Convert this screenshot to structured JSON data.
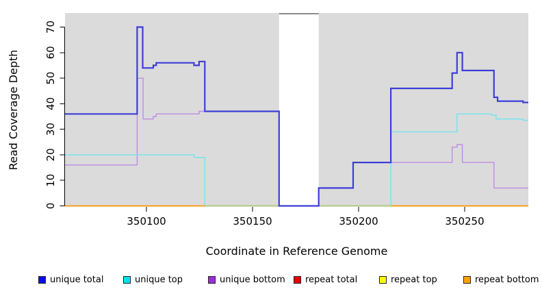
{
  "chart_data": {
    "type": "line",
    "title": "",
    "xlabel": "Coordinate in Reference Genome",
    "ylabel": "Read Coverage Depth",
    "xlim": [
      350061.6,
      350280.0
    ],
    "ylim": [
      0,
      75.5
    ],
    "x_ticks": [
      350100,
      350150,
      350200,
      350250
    ],
    "y_ticks": [
      0,
      10,
      20,
      30,
      40,
      50,
      60,
      70
    ],
    "grid": false,
    "plot_bg_color": "#dbdbdb",
    "gap_region": {
      "x_start": 350162.5,
      "x_end": 350181.2,
      "fill": "#ffffff",
      "top_line_color": "#8a8a8a"
    },
    "zero_overlap": {
      "x_start": 350127.5,
      "x_end": 350215.2,
      "color": "#97d7a1"
    },
    "series": [
      {
        "name": "repeat total",
        "color": "#e60000",
        "width": 1.5,
        "steps": [
          [
            350061.6,
            0
          ]
        ]
      },
      {
        "name": "repeat top",
        "color": "#ffff00",
        "width": 1.5,
        "steps": [
          [
            350061.6,
            0
          ]
        ]
      },
      {
        "name": "unique bottom",
        "color": "#bf8ce3",
        "width": 1.4,
        "steps": [
          [
            350061.6,
            16
          ],
          [
            350095.6,
            50
          ],
          [
            350098.4,
            34
          ],
          [
            350103.2,
            35
          ],
          [
            350104.6,
            36
          ],
          [
            350124.8,
            37
          ],
          [
            350162.5,
            0
          ],
          [
            350181.2,
            7
          ],
          [
            350197.4,
            17
          ],
          [
            350244.1,
            23
          ],
          [
            350246.4,
            24
          ],
          [
            350248.9,
            17
          ],
          [
            350263.8,
            7
          ]
        ]
      },
      {
        "name": "unique top",
        "color": "#72e5ee",
        "width": 1.4,
        "steps": [
          [
            350061.6,
            20
          ],
          [
            350122.4,
            19
          ],
          [
            350127.5,
            0
          ],
          [
            350215.2,
            29
          ],
          [
            350246.4,
            36
          ],
          [
            350262.5,
            35.5
          ],
          [
            350264.8,
            34
          ],
          [
            350277.5,
            33.5
          ]
        ]
      },
      {
        "name": "repeat bottom",
        "color": "#ff9f1a",
        "width": 2,
        "steps": [
          [
            350061.6,
            0
          ]
        ]
      },
      {
        "name": "unique total",
        "color": "#3d3dd8",
        "width": 2.2,
        "steps": [
          [
            350061.6,
            36
          ],
          [
            350095.6,
            70
          ],
          [
            350098.2,
            54
          ],
          [
            350103.2,
            55
          ],
          [
            350104.6,
            56
          ],
          [
            350122.4,
            55
          ],
          [
            350124.8,
            56.5
          ],
          [
            350127.5,
            37
          ],
          [
            350162.5,
            0
          ],
          [
            350181.2,
            7
          ],
          [
            350197.4,
            17
          ],
          [
            350215.2,
            46
          ],
          [
            350244.1,
            52
          ],
          [
            350246.4,
            60
          ],
          [
            350248.9,
            53
          ],
          [
            350263.8,
            42.5
          ],
          [
            350265.5,
            41
          ],
          [
            350277.5,
            40.5
          ]
        ]
      }
    ]
  },
  "legend": {
    "items": [
      {
        "label": "unique total",
        "color": "#0d0de0"
      },
      {
        "label": "unique top",
        "color": "#00e1ea"
      },
      {
        "label": "unique bottom",
        "color": "#9b2fd6"
      },
      {
        "label": "repeat total",
        "color": "#e60000"
      },
      {
        "label": "repeat top",
        "color": "#ffff00"
      },
      {
        "label": "repeat bottom",
        "color": "#ffa200"
      }
    ]
  }
}
